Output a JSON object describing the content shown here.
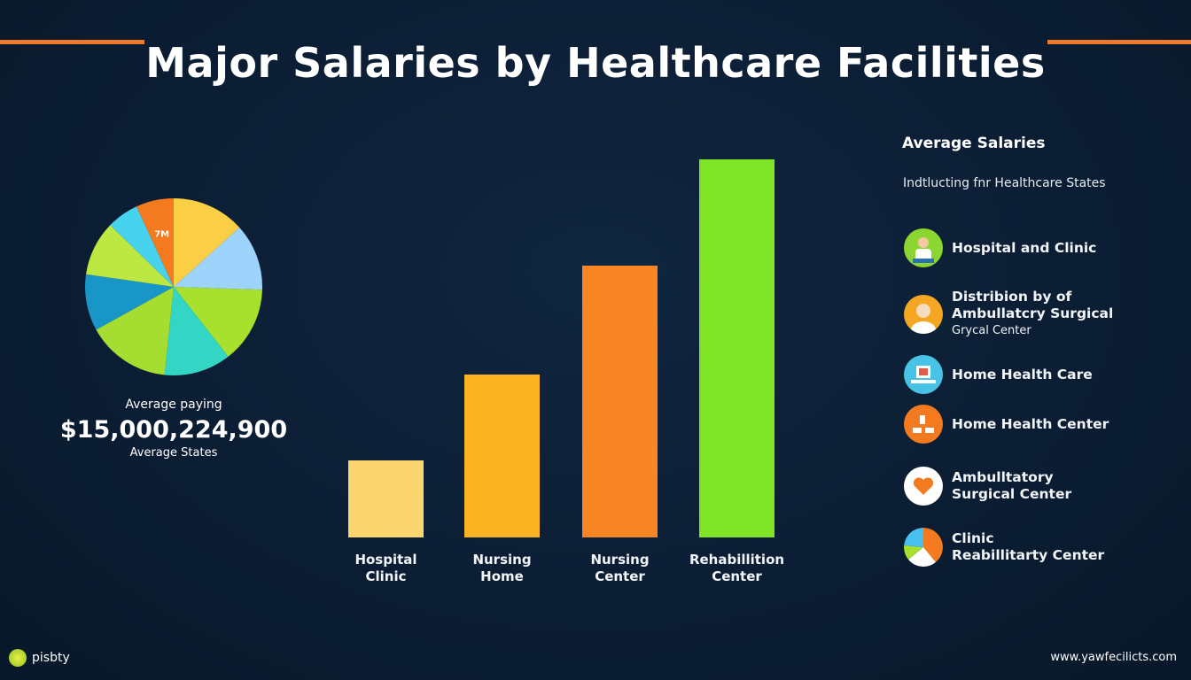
{
  "title": "Major Salaries by Healthcare Facilities",
  "colors": {
    "background": "#0c1f36",
    "accent_line": "#f07a2a"
  },
  "chart_data": [
    {
      "type": "pie",
      "slice_label": "7M",
      "slices": [
        {
          "color": "#fbcf45",
          "percent": 13.3
        },
        {
          "color": "#9ed3fb",
          "percent": 12.2
        },
        {
          "color": "#a7e12e",
          "percent": 13.9
        },
        {
          "color": "#33d6c4",
          "percent": 12.2
        },
        {
          "color": "#a5dd31",
          "percent": 15.3
        },
        {
          "color": "#1996c8",
          "percent": 10.3
        },
        {
          "color": "#bde741",
          "percent": 10.0
        },
        {
          "color": "#47d2ef",
          "percent": 5.8
        },
        {
          "color": "#f47a1f",
          "percent": 6.9
        }
      ]
    },
    {
      "type": "bar",
      "categories": [
        [
          "Hospital",
          "Clinic"
        ],
        [
          "Nursing",
          "Home"
        ],
        [
          "Nursing",
          "Center"
        ],
        [
          "Rehabillition",
          "Center"
        ]
      ],
      "values": [
        87,
        184,
        307,
        427
      ],
      "colors": [
        "#fbd66e",
        "#fbb522",
        "#f98524",
        "#7fe425"
      ],
      "title": "",
      "xlabel": "",
      "ylabel": "",
      "grid": false
    }
  ],
  "summary": {
    "label": "Average paying",
    "value": "$15,000,224,900",
    "sublabel": "Average States"
  },
  "legend": {
    "title": "Average Salaries",
    "subtitle": "Indtlucting fnr Healthcare States",
    "items": [
      {
        "lines": [
          "Hospital and Clinic"
        ],
        "icon": "doctor-icon",
        "color": "#8bd631"
      },
      {
        "lines": [
          "Distribion by of",
          "Ambullatcry Surgical",
          "Grycal Center"
        ],
        "icon": "nurse-icon",
        "color": "#f5a623"
      },
      {
        "lines": [
          "Home Health Care"
        ],
        "icon": "monitor-icon",
        "color": "#48c3e6"
      },
      {
        "lines": [
          "Home Health Center"
        ],
        "icon": "people-icon",
        "color": "#f47a1f"
      },
      {
        "lines": [
          "Ambulltatory",
          "Surgical Center"
        ],
        "icon": "heart-icon",
        "color": "#ffffff"
      },
      {
        "lines": [
          "Clinic",
          "Reabillitarty Center"
        ],
        "icon": "pie-icon",
        "color": "#f47a1f"
      }
    ]
  },
  "footer": {
    "brand": "pisbty",
    "url": "www.yawfecilicts.com"
  }
}
